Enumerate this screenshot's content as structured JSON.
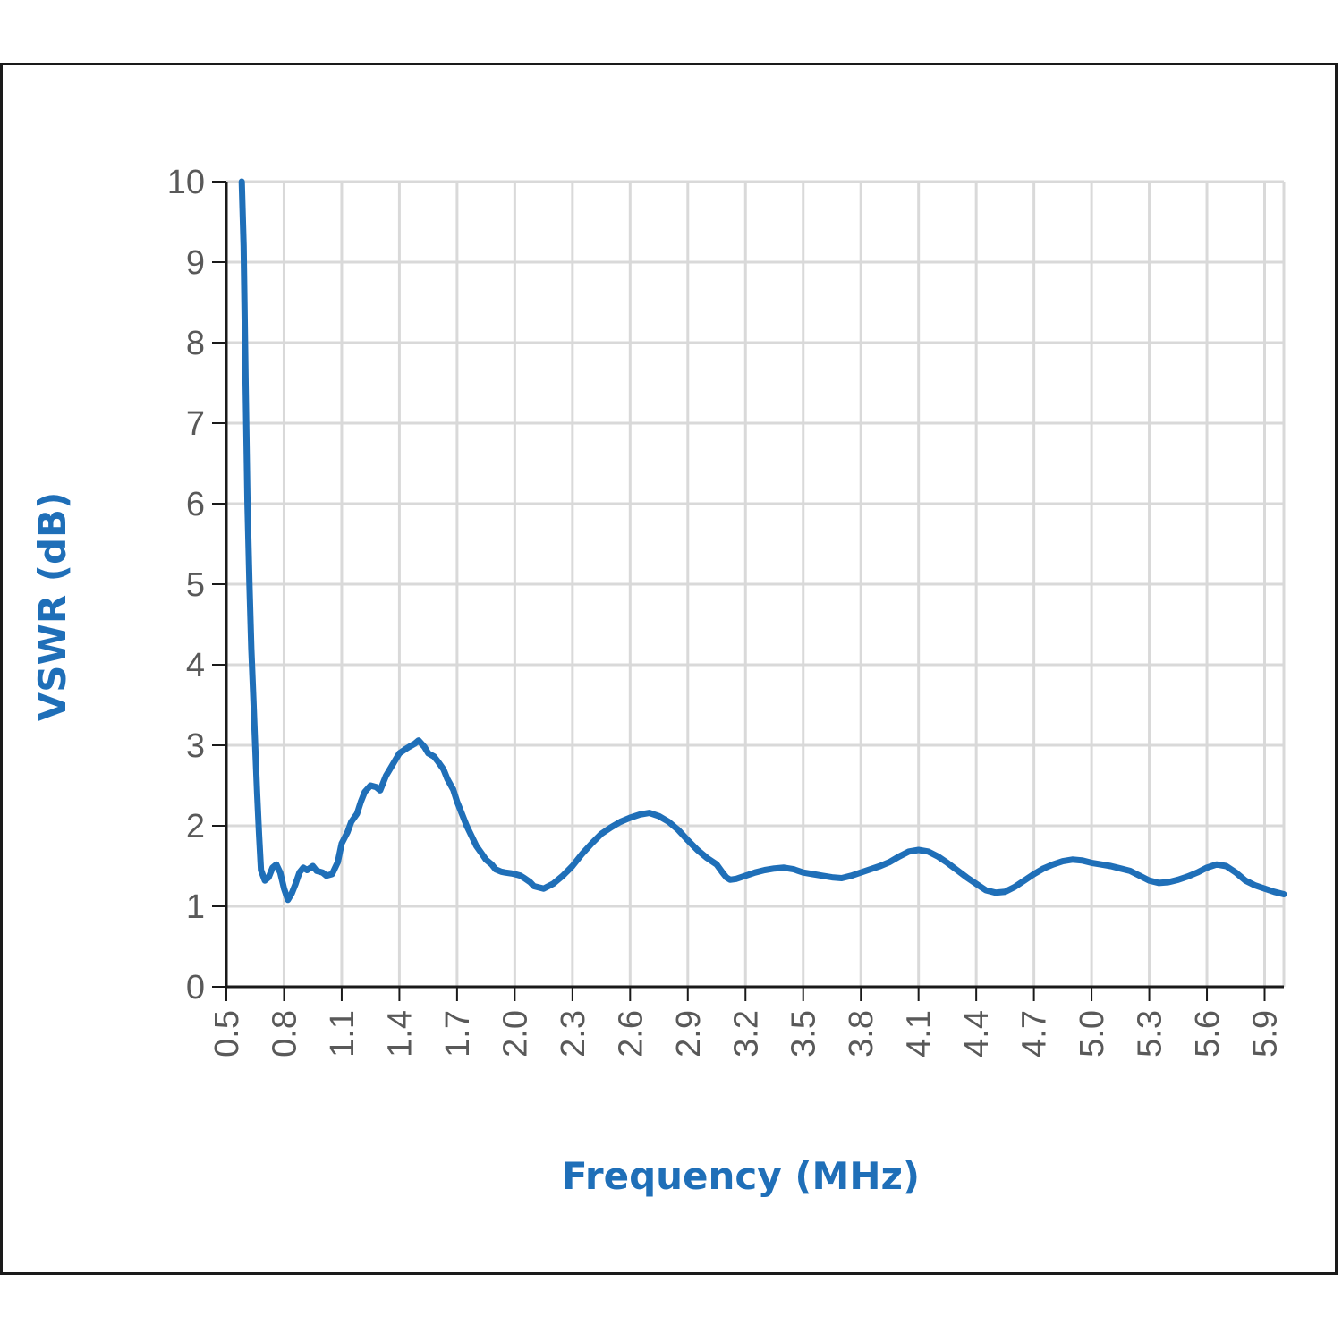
{
  "chart_data": {
    "type": "line",
    "title": "",
    "xlabel": "Frequency (MHz)",
    "ylabel": "VSWR (dB)",
    "xlim": [
      0.5,
      6.0
    ],
    "ylim": [
      0,
      10
    ],
    "x_ticks": [
      "0.5",
      "0.8",
      "1.1",
      "1.4",
      "1.7",
      "2.0",
      "2.3",
      "2.6",
      "2.9",
      "3.2",
      "3.5",
      "3.8",
      "4.1",
      "4.4",
      "4.7",
      "5.0",
      "5.3",
      "5.6",
      "5.9"
    ],
    "y_ticks": [
      "0",
      "1",
      "2",
      "3",
      "4",
      "5",
      "6",
      "7",
      "8",
      "9",
      "10"
    ],
    "grid": true,
    "colors": {
      "series": "#1f6fb8",
      "grid": "#d9d9d9",
      "axis": "#1a1a1a",
      "tick_text": "#595959"
    },
    "series": [
      {
        "name": "VSWR",
        "x": [
          0.58,
          0.59,
          0.6,
          0.61,
          0.62,
          0.63,
          0.64,
          0.65,
          0.66,
          0.67,
          0.68,
          0.7,
          0.72,
          0.74,
          0.76,
          0.78,
          0.8,
          0.82,
          0.84,
          0.86,
          0.88,
          0.9,
          0.92,
          0.95,
          0.97,
          1.0,
          1.02,
          1.05,
          1.08,
          1.1,
          1.13,
          1.15,
          1.18,
          1.2,
          1.22,
          1.25,
          1.28,
          1.3,
          1.33,
          1.35,
          1.38,
          1.4,
          1.43,
          1.45,
          1.48,
          1.5,
          1.53,
          1.55,
          1.58,
          1.6,
          1.63,
          1.65,
          1.68,
          1.7,
          1.72,
          1.75,
          1.78,
          1.8,
          1.83,
          1.85,
          1.88,
          1.9,
          1.93,
          1.95,
          1.98,
          2.0,
          2.03,
          2.05,
          2.08,
          2.1,
          2.15,
          2.2,
          2.25,
          2.3,
          2.35,
          2.4,
          2.45,
          2.5,
          2.55,
          2.6,
          2.65,
          2.7,
          2.75,
          2.8,
          2.85,
          2.9,
          2.95,
          3.0,
          3.05,
          3.08,
          3.1,
          3.12,
          3.15,
          3.2,
          3.25,
          3.3,
          3.35,
          3.4,
          3.45,
          3.5,
          3.55,
          3.6,
          3.65,
          3.7,
          3.75,
          3.8,
          3.85,
          3.9,
          3.95,
          4.0,
          4.05,
          4.1,
          4.15,
          4.2,
          4.25,
          4.3,
          4.35,
          4.4,
          4.45,
          4.5,
          4.55,
          4.6,
          4.65,
          4.7,
          4.75,
          4.8,
          4.85,
          4.9,
          4.95,
          5.0,
          5.05,
          5.1,
          5.15,
          5.2,
          5.25,
          5.3,
          5.35,
          5.4,
          5.45,
          5.5,
          5.55,
          5.6,
          5.65,
          5.7,
          5.75,
          5.8,
          5.85,
          5.9,
          5.95,
          6.0
        ],
        "values": [
          10.0,
          9.2,
          7.5,
          6.0,
          5.0,
          4.2,
          3.6,
          3.0,
          2.4,
          1.9,
          1.45,
          1.32,
          1.36,
          1.48,
          1.52,
          1.42,
          1.22,
          1.08,
          1.16,
          1.28,
          1.42,
          1.48,
          1.45,
          1.5,
          1.44,
          1.42,
          1.38,
          1.4,
          1.55,
          1.78,
          1.92,
          2.05,
          2.15,
          2.3,
          2.42,
          2.5,
          2.48,
          2.44,
          2.62,
          2.7,
          2.82,
          2.9,
          2.95,
          2.98,
          3.02,
          3.06,
          2.98,
          2.9,
          2.86,
          2.8,
          2.7,
          2.58,
          2.45,
          2.3,
          2.18,
          2.0,
          1.85,
          1.75,
          1.65,
          1.58,
          1.52,
          1.46,
          1.43,
          1.42,
          1.41,
          1.4,
          1.38,
          1.35,
          1.3,
          1.25,
          1.22,
          1.28,
          1.38,
          1.5,
          1.65,
          1.78,
          1.9,
          1.98,
          2.05,
          2.1,
          2.14,
          2.16,
          2.12,
          2.05,
          1.95,
          1.82,
          1.7,
          1.6,
          1.52,
          1.42,
          1.36,
          1.33,
          1.34,
          1.38,
          1.42,
          1.45,
          1.47,
          1.48,
          1.46,
          1.42,
          1.4,
          1.38,
          1.36,
          1.35,
          1.38,
          1.42,
          1.46,
          1.5,
          1.55,
          1.62,
          1.68,
          1.7,
          1.68,
          1.62,
          1.54,
          1.45,
          1.36,
          1.28,
          1.2,
          1.17,
          1.18,
          1.24,
          1.32,
          1.4,
          1.47,
          1.52,
          1.56,
          1.58,
          1.57,
          1.54,
          1.52,
          1.5,
          1.47,
          1.44,
          1.38,
          1.32,
          1.29,
          1.3,
          1.33,
          1.37,
          1.42,
          1.48,
          1.52,
          1.5,
          1.42,
          1.32,
          1.26,
          1.22,
          1.18,
          1.15
        ]
      }
    ]
  }
}
